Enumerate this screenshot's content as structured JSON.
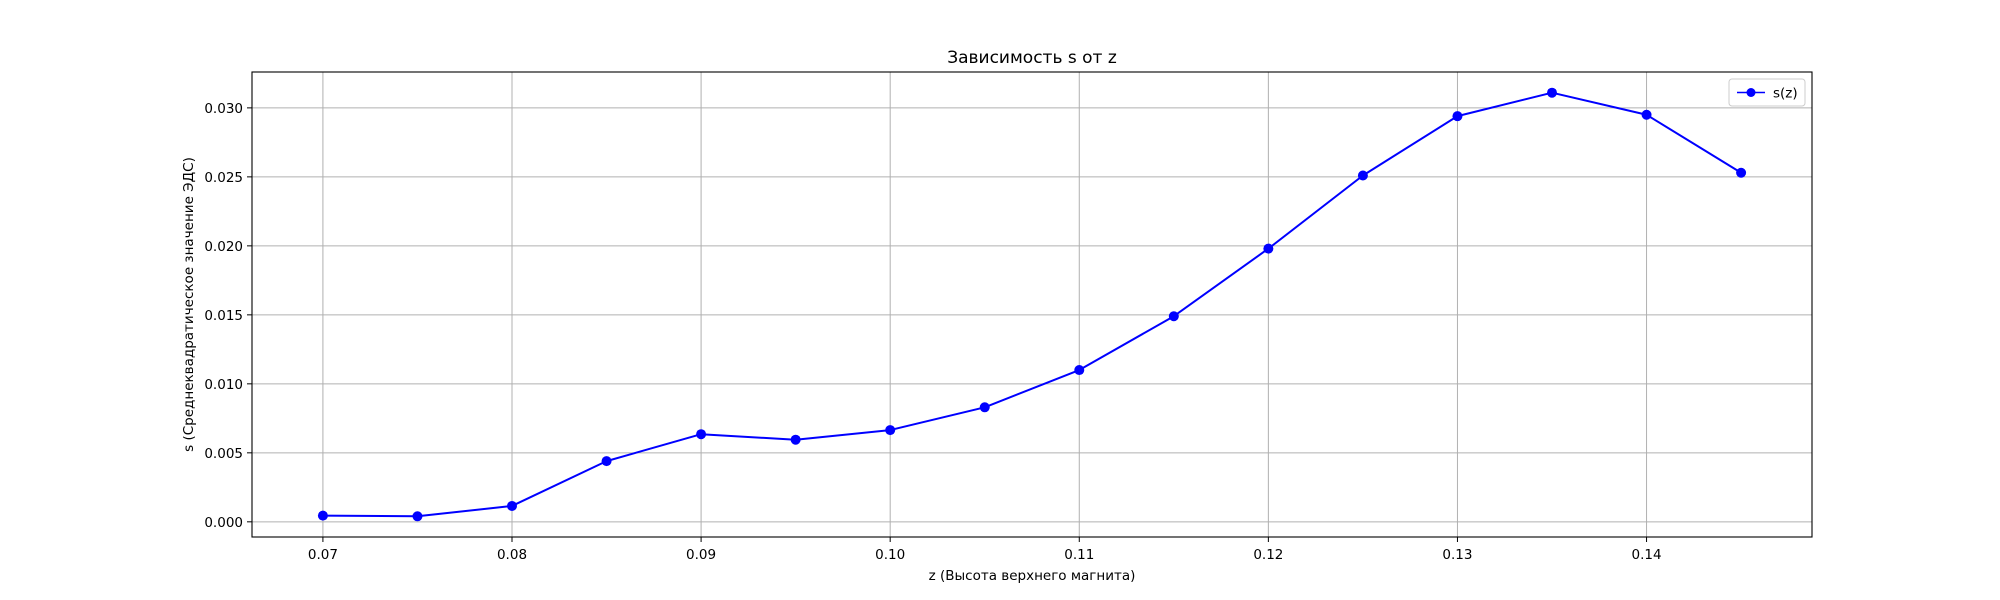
{
  "chart_data": {
    "type": "line",
    "title": "Зависимость s от z",
    "xlabel": "z (Высота верхнего магнита)",
    "ylabel": "s (Среднеквадратическое значение ЭДС)",
    "xlim": [
      0.06625,
      0.14875
    ],
    "ylim": [
      -0.0011,
      0.0326
    ],
    "x_ticks": [
      "0.07",
      "0.08",
      "0.09",
      "0.10",
      "0.11",
      "0.12",
      "0.13",
      "0.14"
    ],
    "y_ticks": [
      "0.000",
      "0.005",
      "0.010",
      "0.015",
      "0.020",
      "0.025",
      "0.030"
    ],
    "grid": true,
    "legend_position": "top-right",
    "series": [
      {
        "name": "s(z)",
        "color": "#0000ff",
        "marker": "circle",
        "x": [
          0.07,
          0.075,
          0.08,
          0.085,
          0.09,
          0.095,
          0.1,
          0.105,
          0.11,
          0.115,
          0.12,
          0.125,
          0.13,
          0.135,
          0.14,
          0.145
        ],
        "y": [
          0.00045,
          0.0004,
          0.00115,
          0.0044,
          0.00635,
          0.00595,
          0.00665,
          0.0083,
          0.011,
          0.0149,
          0.0198,
          0.0251,
          0.0294,
          0.0311,
          0.0295,
          0.0253
        ]
      }
    ]
  }
}
